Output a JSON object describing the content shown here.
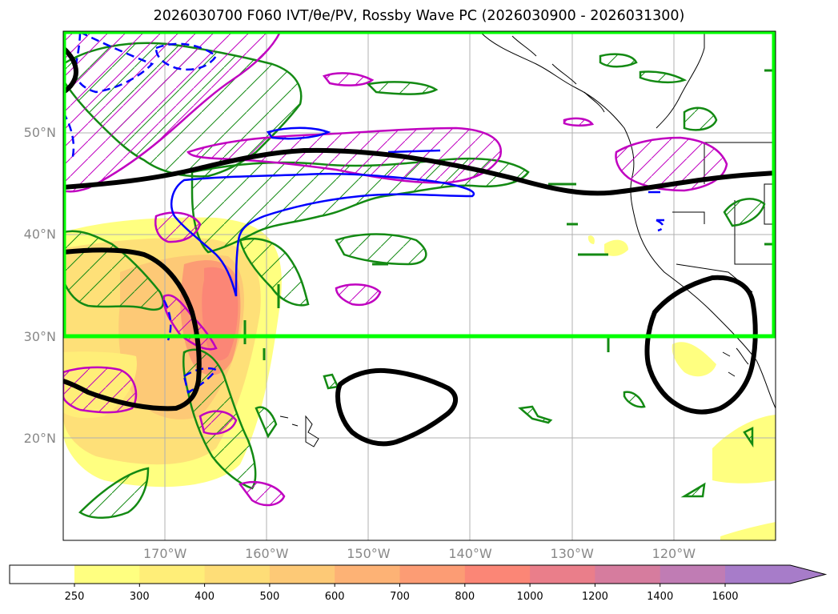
{
  "title": "2026030700 F060 IVT/θe/PV, Rossby Wave PC (2026030900 - 2026031300)",
  "map": {
    "lat_ticks": [
      {
        "lat": 50,
        "label": "50°N"
      },
      {
        "lat": 40,
        "label": "40°N"
      },
      {
        "lat": 30,
        "label": "30°N"
      },
      {
        "lat": 20,
        "label": "20°N"
      }
    ],
    "lon_ticks": [
      {
        "lon": -170,
        "label": "170°W"
      },
      {
        "lon": -160,
        "label": "160°W"
      },
      {
        "lon": -150,
        "label": "150°W"
      },
      {
        "lon": -140,
        "label": "140°W"
      },
      {
        "lon": -130,
        "label": "130°W"
      },
      {
        "lon": -120,
        "label": "120°W"
      }
    ],
    "extent": {
      "lon_min": -180,
      "lon_max": -110,
      "lat_min": 10,
      "lat_max": 60
    },
    "highlight_box": {
      "lon_min": -180,
      "lon_max": -110,
      "lat_min": 30,
      "lat_max": 60,
      "color": "#00ff00"
    },
    "colors": {
      "pv_green": "#138a13",
      "theta_purple": "#c000c0",
      "wave_black": "#000000",
      "ivt_blue": "#0000ff",
      "grid": "#b0b0b0"
    }
  },
  "colorbar": {
    "levels": [
      "250",
      "300",
      "400",
      "500",
      "600",
      "700",
      "800",
      "1000",
      "1200",
      "1400",
      "1600"
    ],
    "colors": [
      "#ffff80",
      "#ffee78",
      "#fedd77",
      "#fdc976",
      "#fdb275",
      "#fc9c74",
      "#fb8676",
      "#ea7e8a",
      "#d67c9e",
      "#c07cb4",
      "#a77cc9"
    ],
    "extend": "max"
  }
}
